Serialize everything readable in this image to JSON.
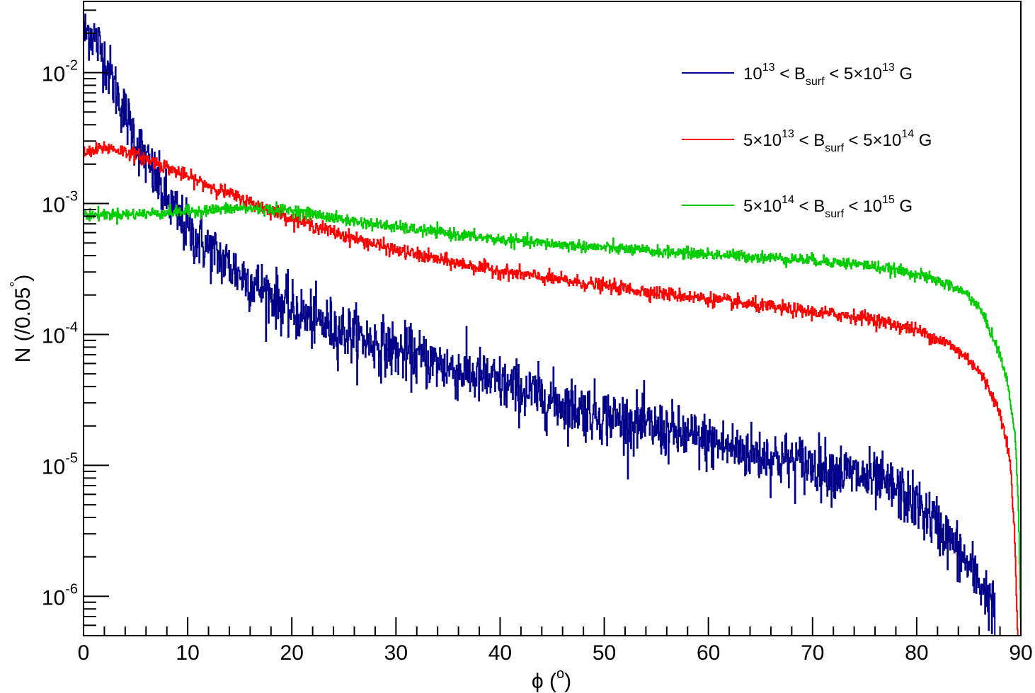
{
  "chart_data": {
    "type": "line",
    "title": "",
    "xlabel": {
      "base": "ϕ (",
      "sup": "o",
      "tail": ")"
    },
    "ylabel": {
      "base": "N (/0.05",
      "sup": "°",
      "tail": ")"
    },
    "xlim": [
      0,
      90
    ],
    "ylim": [
      5e-07,
      0.035
    ],
    "yscale": "log",
    "grid": false,
    "legend_position": "top-right",
    "x_ticks": [
      "0",
      "10",
      "20",
      "30",
      "40",
      "50",
      "60",
      "70",
      "80",
      "90"
    ],
    "y_ticks": [
      {
        "base": "10",
        "exp": "-6"
      },
      {
        "base": "10",
        "exp": "-5"
      },
      {
        "base": "10",
        "exp": "-4"
      },
      {
        "base": "10",
        "exp": "-3"
      },
      {
        "base": "10",
        "exp": "-2"
      }
    ],
    "series": [
      {
        "name": "10^13 < B_surf < 5×10^13 G",
        "legend_parts": [
          "10",
          "13",
          " < B",
          "surf",
          " < 5×10",
          "13",
          " G"
        ],
        "color": "#00008b",
        "noise": 0.25,
        "x": [
          0,
          0.5,
          1,
          2,
          3,
          4,
          5,
          6,
          8,
          10,
          12,
          15,
          18,
          20,
          25,
          30,
          35,
          40,
          45,
          50,
          55,
          60,
          65,
          70,
          75,
          78,
          80,
          82,
          84,
          86,
          87.5
        ],
        "y": [
          0.019,
          0.021,
          0.019,
          0.013,
          0.0078,
          0.0048,
          0.0031,
          0.0021,
          0.00105,
          0.00062,
          0.00045,
          0.00029,
          0.0002,
          0.00015,
          0.000105,
          7.5e-05,
          5.6e-05,
          4.2e-05,
          3.1e-05,
          2.4e-05,
          1.9e-05,
          1.5e-05,
          1.2e-05,
          1e-05,
          8e-06,
          6.5e-06,
          5e-06,
          3.5e-06,
          2.2e-06,
          1.3e-06,
          8e-07
        ]
      },
      {
        "name": "5×10^13 < B_surf < 5×10^14 G",
        "legend_parts": [
          "5×10",
          "13",
          " < B",
          "surf",
          " < 5×10",
          "14",
          " G"
        ],
        "color": "#ff0000",
        "noise": 0.06,
        "x": [
          0,
          1,
          2,
          4,
          6,
          8,
          10,
          15,
          20,
          25,
          30,
          35,
          40,
          45,
          50,
          55,
          60,
          65,
          70,
          75,
          80,
          83,
          85,
          86,
          87,
          88,
          88.5,
          89,
          89.4,
          89.7
        ],
        "y": [
          0.0024,
          0.0025,
          0.0027,
          0.0025,
          0.0022,
          0.0019,
          0.0016,
          0.0011,
          0.00077,
          0.00057,
          0.00044,
          0.00036,
          0.000305,
          0.000265,
          0.000235,
          0.000208,
          0.000187,
          0.000165,
          0.000148,
          0.000135,
          0.000108,
          8.5e-05,
          6.5e-05,
          5.2e-05,
          3.8e-05,
          2.5e-05,
          1.8e-05,
          1e-05,
          3e-06,
          5e-07
        ]
      },
      {
        "name": "5×10^14 < B_surf < 10^15 G",
        "legend_parts": [
          "5×10",
          "14",
          " < B",
          "surf",
          " < 10",
          "15",
          " G"
        ],
        "color": "#00cc00",
        "noise": 0.05,
        "x": [
          0,
          5,
          10,
          15,
          20,
          25,
          30,
          35,
          40,
          45,
          50,
          55,
          60,
          65,
          70,
          75,
          80,
          83,
          85,
          86,
          87,
          88,
          88.5,
          89,
          89.5,
          89.8,
          90
        ],
        "y": [
          0.00082,
          0.00083,
          0.00087,
          0.00092,
          0.00089,
          0.00075,
          0.00066,
          0.00059,
          0.00053,
          0.00049,
          0.00046,
          0.00043,
          0.00041,
          0.00039,
          0.00037,
          0.00034,
          0.00029,
          0.00024,
          0.0002,
          0.00016,
          0.00011,
          7e-05,
          5e-05,
          3.2e-05,
          1.5e-05,
          4e-06,
          5e-07
        ]
      }
    ]
  }
}
